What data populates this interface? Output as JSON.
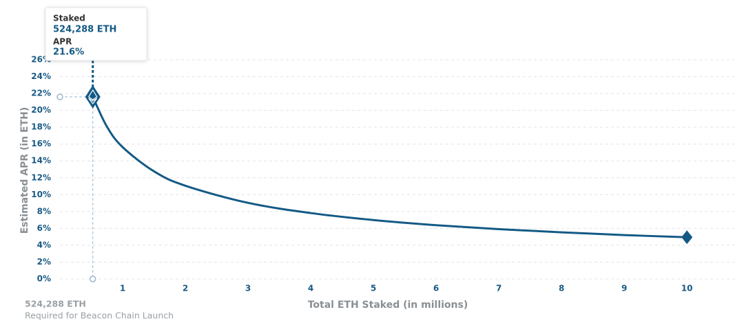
{
  "chart_data": {
    "type": "line",
    "y_label": "Estimated APR (in ETH)",
    "x_label": "Total ETH Staked  (in millions)",
    "x": [
      0.524288,
      0.75,
      1,
      1.5,
      2,
      3,
      4,
      5,
      6,
      7,
      8,
      9,
      10
    ],
    "values": [
      21.6,
      18.06,
      15.64,
      12.77,
      11.06,
      9.03,
      7.82,
      6.99,
      6.38,
      5.91,
      5.53,
      5.21,
      4.95
    ],
    "color": "#135985",
    "xlim": [
      0,
      10.8
    ],
    "ylim": [
      0,
      26
    ],
    "xticks": [
      1,
      2,
      3,
      4,
      5,
      6,
      7,
      8,
      9,
      10
    ],
    "yticks": [
      {
        "value": 0,
        "label": "0%"
      },
      {
        "value": 2,
        "label": "2%"
      },
      {
        "value": 4,
        "label": "4%"
      },
      {
        "value": 6,
        "label": "6%"
      },
      {
        "value": 8,
        "label": "8%"
      },
      {
        "value": 10,
        "label": "10%"
      },
      {
        "value": 12,
        "label": "12%"
      },
      {
        "value": 14,
        "label": "14%"
      },
      {
        "value": 16,
        "label": "16%"
      },
      {
        "value": 18,
        "label": "18%"
      },
      {
        "value": 20,
        "label": "20%"
      },
      {
        "value": 22,
        "label": "22%"
      },
      {
        "value": 24,
        "label": "24%"
      },
      {
        "value": 26,
        "label": "26%"
      }
    ],
    "grid": true,
    "tooltip": {
      "staked_label": "Staked",
      "staked_value": "524,288 ETH",
      "apr_label": "APR",
      "apr_value": "21.6%"
    },
    "note": {
      "amount": "524,288 ETH",
      "caption": "Required for Beacon Chain Launch"
    }
  }
}
